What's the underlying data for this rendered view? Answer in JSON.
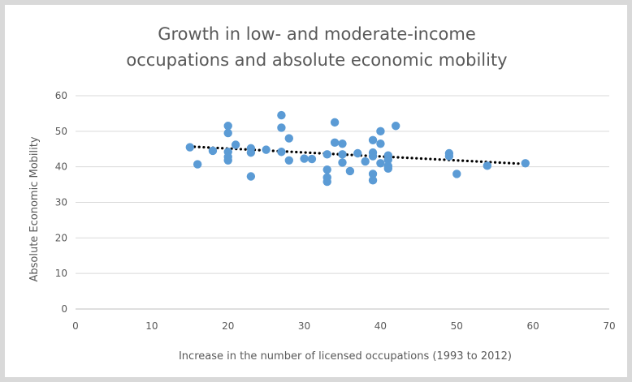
{
  "chart_data": {
    "type": "scatter",
    "title_lines": [
      "Growth in low- and moderate-income",
      "occupations and absolute economic mobility"
    ],
    "xlabel": "Increase in the number of licensed occupations (1993 to 2012)",
    "ylabel": "Absolute Economic Mobility",
    "xlim": [
      0,
      70
    ],
    "ylim": [
      0,
      60
    ],
    "x_ticks": [
      0,
      10,
      20,
      30,
      40,
      50,
      60,
      70
    ],
    "y_ticks": [
      0,
      10,
      20,
      30,
      40,
      50,
      60
    ],
    "grid": "horizontal",
    "legend": "none",
    "colors": {
      "points": "#5b9bd5",
      "trendline": "#000000"
    },
    "trendline": {
      "type": "linear",
      "x": [
        15,
        59
      ],
      "y": [
        45.7,
        40.8
      ]
    },
    "points": [
      {
        "x": 15,
        "y": 45.5
      },
      {
        "x": 16,
        "y": 40.7
      },
      {
        "x": 18,
        "y": 44.5
      },
      {
        "x": 20,
        "y": 51.5
      },
      {
        "x": 20,
        "y": 49.5
      },
      {
        "x": 20,
        "y": 44.2
      },
      {
        "x": 20,
        "y": 42.8
      },
      {
        "x": 20,
        "y": 41.8
      },
      {
        "x": 21,
        "y": 46.2
      },
      {
        "x": 23,
        "y": 45.2
      },
      {
        "x": 23,
        "y": 44.0
      },
      {
        "x": 23,
        "y": 37.3
      },
      {
        "x": 25,
        "y": 44.8
      },
      {
        "x": 27,
        "y": 54.5
      },
      {
        "x": 27,
        "y": 51.0
      },
      {
        "x": 27,
        "y": 44.2
      },
      {
        "x": 28,
        "y": 48.0
      },
      {
        "x": 28,
        "y": 41.8
      },
      {
        "x": 30,
        "y": 42.3
      },
      {
        "x": 31,
        "y": 42.2
      },
      {
        "x": 33,
        "y": 43.5
      },
      {
        "x": 33,
        "y": 39.2
      },
      {
        "x": 33,
        "y": 37.0
      },
      {
        "x": 33,
        "y": 35.8
      },
      {
        "x": 34,
        "y": 52.5
      },
      {
        "x": 34,
        "y": 46.8
      },
      {
        "x": 35,
        "y": 46.5
      },
      {
        "x": 35,
        "y": 43.5
      },
      {
        "x": 35,
        "y": 41.2
      },
      {
        "x": 36,
        "y": 38.8
      },
      {
        "x": 37,
        "y": 43.8
      },
      {
        "x": 38,
        "y": 41.5
      },
      {
        "x": 39,
        "y": 47.5
      },
      {
        "x": 39,
        "y": 44.0
      },
      {
        "x": 39,
        "y": 43.0
      },
      {
        "x": 39,
        "y": 38.0
      },
      {
        "x": 39,
        "y": 36.2
      },
      {
        "x": 40,
        "y": 50.0
      },
      {
        "x": 40,
        "y": 46.5
      },
      {
        "x": 40,
        "y": 41.0
      },
      {
        "x": 41,
        "y": 43.2
      },
      {
        "x": 41,
        "y": 42.0
      },
      {
        "x": 41,
        "y": 40.2
      },
      {
        "x": 41,
        "y": 39.5
      },
      {
        "x": 42,
        "y": 51.5
      },
      {
        "x": 49,
        "y": 43.8
      },
      {
        "x": 49,
        "y": 43.0
      },
      {
        "x": 50,
        "y": 38.0
      },
      {
        "x": 54,
        "y": 40.3
      },
      {
        "x": 59,
        "y": 41.0
      }
    ]
  }
}
